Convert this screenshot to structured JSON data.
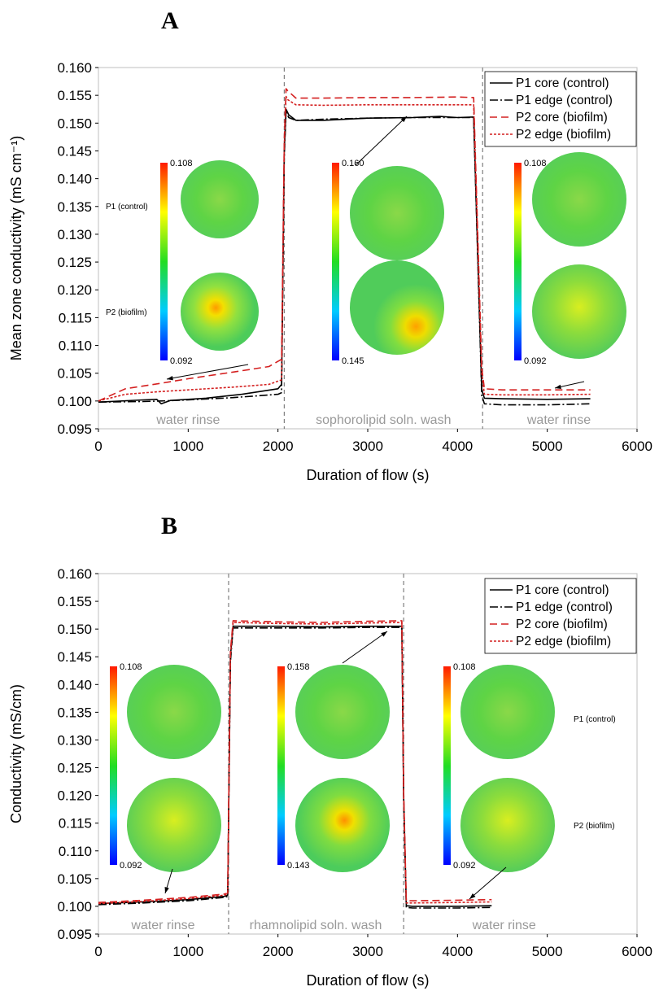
{
  "chart_data": [
    {
      "panel": "A",
      "type": "line",
      "xlabel": "Duration of flow (s)",
      "ylabel": "Mean zone conductivity (mS cm⁻¹)",
      "xlim": [
        0,
        6000
      ],
      "ylim": [
        0.095,
        0.16
      ],
      "xticks": [
        "0",
        "1000",
        "2000",
        "3000",
        "4000",
        "5000",
        "6000"
      ],
      "yticks": [
        "0.095",
        "0.100",
        "0.105",
        "0.110",
        "0.115",
        "0.120",
        "0.125",
        "0.130",
        "0.135",
        "0.140",
        "0.145",
        "0.150",
        "0.155",
        "0.160"
      ],
      "grid": false,
      "legend_position": "top-right",
      "phase_boundaries": [
        2070,
        4280
      ],
      "phases": [
        {
          "label": "water rinse",
          "x": 1000
        },
        {
          "label": "sophorolipid soln. wash",
          "x": 3175
        },
        {
          "label": "water rinse",
          "x": 5130
        }
      ],
      "series": [
        {
          "name": "P1 core (control)",
          "color": "#000000",
          "dash": "solid",
          "x": [
            0,
            500,
            650,
            700,
            800,
            1200,
            1600,
            2000,
            2040,
            2070,
            2090,
            2120,
            2200,
            2500,
            3000,
            3500,
            3800,
            4000,
            4180,
            4270,
            4300,
            4500,
            5000,
            5480
          ],
          "y": [
            0.0998,
            0.1002,
            0.1003,
            0.0995,
            0.1001,
            0.1005,
            0.1012,
            0.1022,
            0.103,
            0.145,
            0.1525,
            0.1515,
            0.1505,
            0.1505,
            0.1509,
            0.151,
            0.1512,
            0.151,
            0.1511,
            0.102,
            0.1005,
            0.1004,
            0.1003,
            0.1004
          ]
        },
        {
          "name": "P1 edge (control)",
          "color": "#000000",
          "dash": "dashdot",
          "x": [
            0,
            500,
            700,
            1000,
            1500,
            2000,
            2040,
            2070,
            2090,
            2120,
            2200,
            2500,
            3000,
            3500,
            4000,
            4180,
            4270,
            4300,
            4500,
            5000,
            5480
          ],
          "y": [
            0.0998,
            0.0999,
            0.1,
            0.1002,
            0.1006,
            0.1012,
            0.1015,
            0.144,
            0.152,
            0.151,
            0.1505,
            0.1507,
            0.1509,
            0.151,
            0.151,
            0.151,
            0.101,
            0.0995,
            0.0993,
            0.0993,
            0.0995
          ]
        },
        {
          "name": "P2 core (biofilm)",
          "color": "#d42020",
          "dash": "longdash",
          "x": [
            0,
            300,
            700,
            1000,
            1500,
            1900,
            2040,
            2070,
            2090,
            2110,
            2200,
            2500,
            3000,
            3500,
            4000,
            4180,
            4270,
            4300,
            4500,
            5000,
            5480
          ],
          "y": [
            0.1,
            0.1022,
            0.1032,
            0.104,
            0.1052,
            0.1062,
            0.1075,
            0.147,
            0.1562,
            0.1558,
            0.1545,
            0.1545,
            0.1546,
            0.1546,
            0.1547,
            0.1546,
            0.106,
            0.1022,
            0.102,
            0.102,
            0.102
          ]
        },
        {
          "name": "P2 edge (biofilm)",
          "color": "#d42020",
          "dash": "shortdash",
          "x": [
            0,
            300,
            700,
            1000,
            1500,
            1900,
            2040,
            2070,
            2090,
            2110,
            2200,
            2500,
            3000,
            3500,
            4000,
            4180,
            4270,
            4300,
            4500,
            5000,
            5480
          ],
          "y": [
            0.1,
            0.1012,
            0.1017,
            0.102,
            0.1025,
            0.103,
            0.1038,
            0.146,
            0.1548,
            0.1542,
            0.1533,
            0.1532,
            0.1533,
            0.1533,
            0.1533,
            0.1533,
            0.105,
            0.1012,
            0.1011,
            0.1011,
            0.1012
          ]
        }
      ],
      "inset_maps": [
        {
          "max": "0.108",
          "min": "0.092",
          "row_labels": [
            "P1 (control)",
            "P2 (biofilm)"
          ]
        },
        {
          "max": "0.160",
          "min": "0.145",
          "row_labels": []
        },
        {
          "max": "0.108",
          "min": "0.092",
          "row_labels": []
        }
      ]
    },
    {
      "panel": "B",
      "type": "line",
      "xlabel": "Duration of flow (s)",
      "ylabel": "Conductivity (mS/cm)",
      "xlim": [
        0,
        6000
      ],
      "ylim": [
        0.095,
        0.16
      ],
      "xticks": [
        "0",
        "1000",
        "2000",
        "3000",
        "4000",
        "5000",
        "6000"
      ],
      "yticks": [
        "0.095",
        "0.100",
        "0.105",
        "0.110",
        "0.115",
        "0.120",
        "0.125",
        "0.130",
        "0.135",
        "0.140",
        "0.145",
        "0.150",
        "0.155",
        "0.160"
      ],
      "grid": false,
      "legend_position": "top-right",
      "phase_boundaries": [
        1450,
        3400
      ],
      "phases": [
        {
          "label": "water rinse",
          "x": 720
        },
        {
          "label": "rhamnolipid soln. wash",
          "x": 2420
        },
        {
          "label": "water rinse",
          "x": 4520
        }
      ],
      "series": [
        {
          "name": "P1 core (control)",
          "color": "#000000",
          "dash": "solid",
          "x": [
            0,
            500,
            1000,
            1400,
            1440,
            1470,
            1500,
            2000,
            2500,
            3000,
            3380,
            3400,
            3430,
            3500,
            4000,
            4380
          ],
          "y": [
            0.1005,
            0.1008,
            0.1012,
            0.1018,
            0.102,
            0.145,
            0.1505,
            0.1505,
            0.1504,
            0.1505,
            0.1505,
            0.12,
            0.1001,
            0.1,
            0.1,
            0.1001
          ]
        },
        {
          "name": "P1 edge (control)",
          "color": "#000000",
          "dash": "dashdot",
          "x": [
            0,
            500,
            1000,
            1400,
            1440,
            1470,
            1500,
            2000,
            2500,
            3000,
            3380,
            3400,
            3430,
            3500,
            4000,
            4380
          ],
          "y": [
            0.1003,
            0.1006,
            0.101,
            0.1016,
            0.1018,
            0.144,
            0.1502,
            0.1502,
            0.1502,
            0.1503,
            0.1503,
            0.12,
            0.0998,
            0.0997,
            0.0997,
            0.0998
          ]
        },
        {
          "name": "P2 core (biofilm)",
          "color": "#d42020",
          "dash": "longdash",
          "x": [
            0,
            500,
            1000,
            1400,
            1440,
            1470,
            1500,
            2000,
            2500,
            3000,
            3380,
            3400,
            3430,
            3500,
            4000,
            4380
          ],
          "y": [
            0.1007,
            0.1011,
            0.1016,
            0.1022,
            0.1024,
            0.146,
            0.1515,
            0.1513,
            0.1512,
            0.1514,
            0.1515,
            0.121,
            0.101,
            0.101,
            0.1011,
            0.1012
          ]
        },
        {
          "name": "P2 edge (biofilm)",
          "color": "#d42020",
          "dash": "shortdash",
          "x": [
            0,
            500,
            1000,
            1400,
            1440,
            1470,
            1500,
            2000,
            2500,
            3000,
            3380,
            3400,
            3430,
            3500,
            4000,
            4380
          ],
          "y": [
            0.1005,
            0.1009,
            0.1014,
            0.102,
            0.1022,
            0.145,
            0.1512,
            0.151,
            0.1509,
            0.1511,
            0.1512,
            0.1205,
            0.1006,
            0.1006,
            0.1007,
            0.1008
          ]
        }
      ],
      "inset_maps": [
        {
          "max": "0.108",
          "min": "0.092",
          "row_labels": []
        },
        {
          "max": "0.158",
          "min": "0.143",
          "row_labels": []
        },
        {
          "max": "0.108",
          "min": "0.092",
          "row_labels": [
            "P1 (control)",
            "P2 (biofilm)"
          ]
        }
      ]
    }
  ]
}
